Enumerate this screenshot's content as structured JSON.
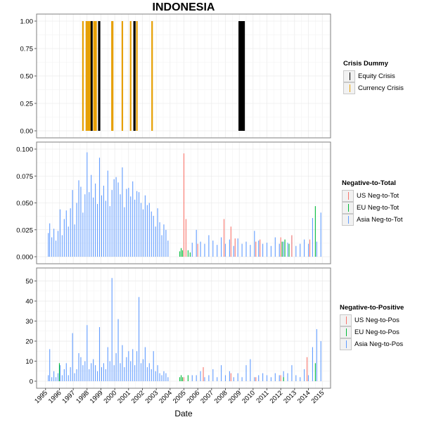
{
  "title": "INDONESIA",
  "x_axis_title": "Date",
  "x_ticks": [
    "1995",
    "1996",
    "1997",
    "1998",
    "1999",
    "2000",
    "2001",
    "2002",
    "2003",
    "2004",
    "2005",
    "2006",
    "2007",
    "2008",
    "2009",
    "2010",
    "2011",
    "2012",
    "2013",
    "2014",
    "2015"
  ],
  "colors": {
    "equity": "#000000",
    "currency": "#E69F00",
    "us": "#F8766D",
    "eu": "#00BA38",
    "asia": "#619CFF",
    "panel_border": "#7f7f7f",
    "grid": "#e6e6e6"
  },
  "chart_data": [
    {
      "type": "bar",
      "panel": "crisis",
      "y_ticks": [
        "0.00",
        "0.25",
        "0.50",
        "0.75",
        "1.00"
      ],
      "ylim": [
        0,
        1
      ],
      "legend": {
        "title": "Crisis Dummy",
        "items": [
          "Equity Crisis",
          "Currency Crisis"
        ]
      },
      "series": [
        {
          "name": "Equity Crisis",
          "color_key": "equity",
          "x": [
            1998.3,
            1998.35,
            1998.85,
            1998.9,
            2001.4,
            2001.45,
            2009.0,
            2009.05,
            2009.1,
            2009.15,
            2009.2,
            2009.25,
            2009.3,
            2009.35
          ],
          "values": [
            1,
            1,
            1,
            1,
            1,
            1,
            1,
            1,
            1,
            1,
            1,
            1,
            1,
            1
          ]
        },
        {
          "name": "Currency Crisis",
          "color_key": "currency",
          "x": [
            1997.7,
            1997.95,
            1998.0,
            1998.1,
            1998.2,
            1998.5,
            1998.55,
            1998.65,
            1999.8,
            1999.85,
            2000.55,
            2001.15,
            2001.6,
            2002.7
          ],
          "values": [
            1,
            1,
            1,
            1,
            1,
            1,
            1,
            1,
            1,
            1,
            1,
            1,
            1,
            1
          ]
        }
      ]
    },
    {
      "type": "bar",
      "panel": "neg_to_tot",
      "y_ticks": [
        "0.000",
        "0.025",
        "0.050",
        "0.075",
        "0.100"
      ],
      "ylim": [
        0,
        0.1
      ],
      "legend": {
        "title": "Negative-to-Total",
        "items": [
          "US Neg-to-Tot",
          "EU Neg-to-Tot",
          "Asia Neg-to-Tot"
        ]
      },
      "series": [
        {
          "name": "Asia Neg-to-Tot",
          "color_key": "asia",
          "x": [
            1995.2,
            1995.3,
            1995.45,
            1995.6,
            1995.75,
            1995.9,
            1996.05,
            1996.2,
            1996.35,
            1996.5,
            1996.65,
            1996.8,
            1996.95,
            1997.1,
            1997.25,
            1997.4,
            1997.55,
            1997.7,
            1997.85,
            1998.0,
            1998.15,
            1998.3,
            1998.45,
            1998.6,
            1998.75,
            1998.9,
            1999.05,
            1999.2,
            1999.35,
            1999.5,
            1999.65,
            1999.8,
            1999.95,
            2000.1,
            2000.25,
            2000.4,
            2000.55,
            2000.7,
            2000.85,
            2001.0,
            2001.15,
            2001.3,
            2001.45,
            2001.6,
            2001.75,
            2001.9,
            2002.05,
            2002.2,
            2002.35,
            2002.5,
            2002.65,
            2002.8,
            2002.95,
            2003.1,
            2003.25,
            2003.4,
            2003.55,
            2003.7,
            2003.85,
            2005.6,
            2005.9,
            2006.2,
            2006.5,
            2006.8,
            2007.1,
            2007.4,
            2007.7,
            2008.0,
            2008.3,
            2008.6,
            2008.9,
            2009.2,
            2009.5,
            2009.8,
            2010.1,
            2010.4,
            2010.7,
            2011.0,
            2011.3,
            2011.6,
            2011.9,
            2012.2,
            2012.5,
            2012.8,
            2013.1,
            2013.4,
            2013.7,
            2014.0,
            2014.3,
            2014.6,
            2014.9
          ],
          "values": [
            0.022,
            0.031,
            0.018,
            0.026,
            0.015,
            0.024,
            0.044,
            0.02,
            0.035,
            0.043,
            0.028,
            0.045,
            0.062,
            0.03,
            0.05,
            0.071,
            0.065,
            0.041,
            0.058,
            0.097,
            0.06,
            0.076,
            0.055,
            0.068,
            0.049,
            0.092,
            0.057,
            0.066,
            0.052,
            0.08,
            0.047,
            0.062,
            0.072,
            0.074,
            0.069,
            0.058,
            0.083,
            0.046,
            0.063,
            0.064,
            0.056,
            0.07,
            0.053,
            0.061,
            0.06,
            0.05,
            0.044,
            0.057,
            0.048,
            0.05,
            0.042,
            0.038,
            0.028,
            0.045,
            0.032,
            0.02,
            0.03,
            0.025,
            0.015,
            0.013,
            0.025,
            0.014,
            0.012,
            0.02,
            0.015,
            0.011,
            0.018,
            0.012,
            0.016,
            0.01,
            0.017,
            0.012,
            0.014,
            0.011,
            0.024,
            0.015,
            0.012,
            0.013,
            0.01,
            0.018,
            0.012,
            0.014,
            0.013,
            0.019,
            0.01,
            0.012,
            0.016,
            0.012,
            0.036,
            0.014,
            0.041
          ]
        },
        {
          "name": "US Neg-to-Tot",
          "color_key": "us",
          "x": [
            2005.0,
            2005.15,
            2006.0,
            2007.9,
            2008.4,
            2008.7,
            2010.2,
            2010.5,
            2012.0,
            2012.8,
            2014.1
          ],
          "values": [
            0.096,
            0.035,
            0.012,
            0.035,
            0.028,
            0.017,
            0.014,
            0.016,
            0.018,
            0.02,
            0.016
          ]
        },
        {
          "name": "EU Neg-to-Tot",
          "color_key": "eu",
          "x": [
            2004.7,
            2004.8,
            2004.9,
            2005.3,
            2005.45,
            2012.1,
            2012.3,
            2012.6,
            2014.5
          ],
          "values": [
            0.005,
            0.008,
            0.006,
            0.006,
            0.004,
            0.014,
            0.016,
            0.012,
            0.047
          ]
        }
      ]
    },
    {
      "type": "bar",
      "panel": "neg_to_pos",
      "y_ticks": [
        "0",
        "10",
        "20",
        "30",
        "40",
        "50"
      ],
      "ylim": [
        0,
        53
      ],
      "legend": {
        "title": "Negative-to-Positive",
        "items": [
          "US Neg-to-Pos",
          "EU Neg-to-Pos",
          "Asia Neg-to-Pos"
        ]
      },
      "series": [
        {
          "name": "Asia Neg-to-Pos",
          "color_key": "asia",
          "x": [
            1995.2,
            1995.3,
            1995.45,
            1995.6,
            1995.75,
            1995.9,
            1996.05,
            1996.2,
            1996.35,
            1996.5,
            1996.65,
            1996.8,
            1996.95,
            1997.1,
            1997.25,
            1997.4,
            1997.55,
            1997.7,
            1997.85,
            1998.0,
            1998.15,
            1998.3,
            1998.45,
            1998.6,
            1998.75,
            1998.9,
            1999.05,
            1999.2,
            1999.35,
            1999.5,
            1999.65,
            1999.8,
            1999.95,
            2000.1,
            2000.25,
            2000.4,
            2000.55,
            2000.7,
            2000.85,
            2001.0,
            2001.15,
            2001.3,
            2001.45,
            2001.6,
            2001.75,
            2001.9,
            2002.05,
            2002.2,
            2002.35,
            2002.5,
            2002.65,
            2002.8,
            2002.95,
            2003.1,
            2003.25,
            2003.4,
            2003.55,
            2003.7,
            2003.85,
            2005.6,
            2005.9,
            2006.2,
            2006.5,
            2006.8,
            2007.1,
            2007.4,
            2007.7,
            2008.0,
            2008.3,
            2008.6,
            2008.9,
            2009.2,
            2009.5,
            2009.8,
            2010.1,
            2010.4,
            2010.7,
            2011.0,
            2011.3,
            2011.6,
            2011.9,
            2012.2,
            2012.5,
            2012.8,
            2013.1,
            2013.4,
            2013.7,
            2014.0,
            2014.3,
            2014.6,
            2014.9
          ],
          "values": [
            3,
            16,
            2,
            5,
            2,
            4,
            8,
            3,
            6,
            9,
            3,
            7,
            24,
            4,
            6,
            14,
            12,
            8,
            10,
            28,
            6,
            9,
            11,
            8,
            5,
            27,
            7,
            9,
            6,
            17,
            10,
            51.5,
            8,
            14,
            31,
            9,
            18,
            7,
            12,
            15,
            10,
            16,
            8,
            15,
            42,
            9,
            11,
            17,
            7,
            9,
            6,
            15,
            5,
            8,
            4,
            3,
            5,
            4,
            2,
            3,
            3,
            5,
            2,
            3,
            6,
            2,
            8,
            3,
            5,
            2,
            4,
            2,
            8,
            11,
            2,
            3,
            4,
            3,
            2,
            4,
            3,
            5,
            4,
            8,
            3,
            2,
            6,
            3,
            17,
            26,
            20
          ]
        },
        {
          "name": "US Neg-to-Pos",
          "color_key": "us",
          "x": [
            2005.0,
            2006.4,
            2008.4,
            2010.2,
            2012.0,
            2013.9
          ],
          "values": [
            2,
            7,
            4,
            2,
            3,
            12
          ]
        },
        {
          "name": "EU Neg-to-Pos",
          "color_key": "eu",
          "x": [
            1996.0,
            2004.7,
            2004.8,
            2004.9,
            2005.3,
            2012.2,
            2014.5
          ],
          "values": [
            9,
            2,
            3,
            2,
            3,
            2,
            9
          ]
        }
      ]
    }
  ]
}
